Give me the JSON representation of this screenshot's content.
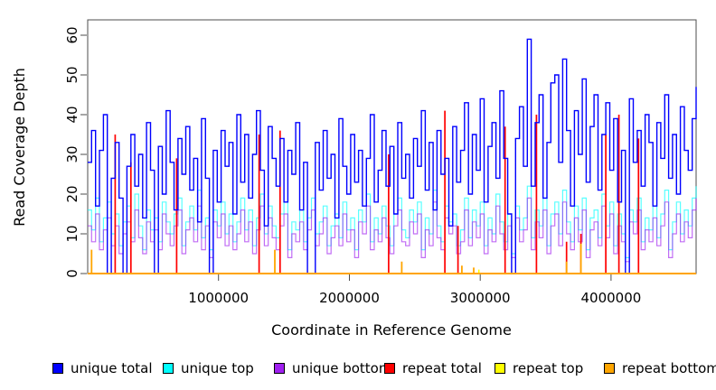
{
  "figure": {
    "background": "#ffffff",
    "box_color": "#4d4d4d"
  },
  "chart_data": {
    "type": "line",
    "title": "",
    "xlabel": "Coordinate in Reference Genome",
    "ylabel": "Read Coverage Depth",
    "xlim": [
      0,
      4650000
    ],
    "ylim": [
      0,
      60
    ],
    "grid": false,
    "legend_position": "bottom",
    "x_ticks": [
      1000000,
      2000000,
      3000000,
      4000000
    ],
    "x_tick_labels": [
      "1000000",
      "2000000",
      "3000000",
      "4000000"
    ],
    "y_ticks": [
      0,
      10,
      20,
      30,
      40,
      50,
      60
    ],
    "y_tick_labels": [
      "0",
      "10",
      "20",
      "30",
      "40",
      "50",
      "60"
    ],
    "x_start": 0,
    "x_step": 30000,
    "series": [
      {
        "name": "unique total",
        "color": "#0000FF",
        "values": [
          28,
          36,
          17,
          31,
          40,
          0,
          24,
          33,
          19,
          0,
          27,
          35,
          22,
          30,
          14,
          38,
          26,
          0,
          32,
          20,
          41,
          28,
          16,
          34,
          25,
          37,
          21,
          29,
          13,
          39,
          24,
          0,
          31,
          18,
          36,
          27,
          33,
          15,
          40,
          23,
          35,
          19,
          30,
          41,
          26,
          12,
          37,
          29,
          22,
          34,
          18,
          31,
          25,
          38,
          16,
          28,
          0,
          0,
          33,
          21,
          36,
          24,
          30,
          14,
          39,
          27,
          20,
          35,
          23,
          31,
          17,
          29,
          40,
          18,
          26,
          36,
          22,
          32,
          15,
          38,
          24,
          30,
          19,
          34,
          27,
          41,
          21,
          33,
          16,
          36,
          25,
          29,
          12,
          37,
          23,
          31,
          43,
          20,
          35,
          26,
          44,
          18,
          32,
          38,
          24,
          46,
          29,
          15,
          0,
          34,
          42,
          27,
          59,
          22,
          38,
          45,
          19,
          33,
          48,
          50,
          28,
          54,
          36,
          17,
          41,
          30,
          49,
          23,
          37,
          45,
          21,
          35,
          43,
          26,
          39,
          18,
          31,
          0,
          44,
          28,
          36,
          22,
          40,
          33,
          17,
          38,
          29,
          45,
          24,
          35,
          20,
          42,
          31,
          26,
          39,
          47
        ]
      },
      {
        "name": "unique top",
        "color": "#00FFFF",
        "values": [
          16,
          11,
          19,
          8,
          14,
          18,
          10,
          15,
          7,
          13,
          17,
          9,
          20,
          12,
          6,
          16,
          11,
          14,
          8,
          18,
          13,
          10,
          15,
          19,
          7,
          13,
          17,
          11,
          21,
          9,
          14,
          6,
          16,
          12,
          18,
          10,
          15,
          8,
          13,
          19,
          11,
          16,
          7,
          14,
          20,
          10,
          17,
          12,
          9,
          15,
          18,
          6,
          13,
          11,
          16,
          8,
          14,
          19,
          10,
          13,
          17,
          7,
          12,
          15,
          9,
          18,
          11,
          14,
          6,
          16,
          13,
          20,
          8,
          14,
          10,
          17,
          12,
          7,
          15,
          19,
          11,
          9,
          16,
          13,
          18,
          6,
          14,
          10,
          21,
          12,
          8,
          17,
          13,
          15,
          7,
          11,
          19,
          9,
          16,
          12,
          18,
          7,
          14,
          10,
          20,
          13,
          8,
          15,
          5,
          17,
          11,
          14,
          22,
          9,
          16,
          12,
          19,
          7,
          15,
          18,
          10,
          21,
          13,
          8,
          17,
          11,
          19,
          6,
          14,
          16,
          9,
          20,
          12,
          18,
          7,
          15,
          10,
          4,
          16,
          13,
          19,
          8,
          14,
          11,
          17,
          9,
          15,
          21,
          6,
          13,
          18,
          10,
          16,
          12,
          19,
          22
        ]
      },
      {
        "name": "unique bottom",
        "color": "#A020F0",
        "values": [
          12,
          8,
          15,
          6,
          11,
          14,
          7,
          12,
          5,
          10,
          13,
          8,
          16,
          9,
          5,
          13,
          8,
          11,
          6,
          15,
          10,
          7,
          12,
          16,
          5,
          11,
          14,
          8,
          17,
          6,
          12,
          4,
          13,
          9,
          15,
          7,
          12,
          6,
          10,
          16,
          8,
          13,
          5,
          11,
          17,
          7,
          14,
          9,
          6,
          12,
          15,
          4,
          10,
          8,
          13,
          6,
          11,
          16,
          7,
          10,
          14,
          5,
          9,
          12,
          7,
          15,
          8,
          11,
          4,
          13,
          10,
          17,
          6,
          11,
          8,
          14,
          9,
          5,
          12,
          16,
          8,
          7,
          13,
          10,
          15,
          4,
          11,
          7,
          18,
          9,
          6,
          14,
          10,
          12,
          5,
          8,
          16,
          7,
          13,
          9,
          15,
          5,
          11,
          8,
          17,
          10,
          6,
          12,
          4,
          14,
          8,
          11,
          19,
          6,
          13,
          9,
          16,
          5,
          12,
          15,
          7,
          18,
          10,
          6,
          14,
          8,
          16,
          4,
          11,
          13,
          7,
          17,
          9,
          15,
          5,
          12,
          8,
          3,
          13,
          10,
          16,
          6,
          11,
          8,
          14,
          7,
          12,
          18,
          4,
          10,
          15,
          8,
          13,
          9,
          16,
          19
        ]
      },
      {
        "name": "repeat total",
        "color": "#FF0000",
        "baseline": 0,
        "spikes": [
          [
            210000,
            35
          ],
          [
            330000,
            28
          ],
          [
            680000,
            29
          ],
          [
            1310000,
            35
          ],
          [
            1470000,
            36
          ],
          [
            2300000,
            30
          ],
          [
            2730000,
            41
          ],
          [
            2830000,
            12
          ],
          [
            3190000,
            37
          ],
          [
            3430000,
            40
          ],
          [
            3660000,
            8
          ],
          [
            3770000,
            10
          ],
          [
            3960000,
            35
          ],
          [
            4060000,
            40
          ],
          [
            4210000,
            34
          ]
        ]
      },
      {
        "name": "repeat top",
        "color": "#FFFF00",
        "baseline": 0,
        "spikes": [
          [
            2990000,
            1
          ]
        ]
      },
      {
        "name": "repeat bottom",
        "color": "#FFA500",
        "baseline": 0,
        "spikes": [
          [
            30000,
            6
          ],
          [
            1430000,
            6
          ],
          [
            2400000,
            3
          ],
          [
            2860000,
            2
          ],
          [
            2950000,
            1.5
          ],
          [
            3660000,
            3
          ],
          [
            3770000,
            7.5
          ]
        ]
      }
    ]
  }
}
